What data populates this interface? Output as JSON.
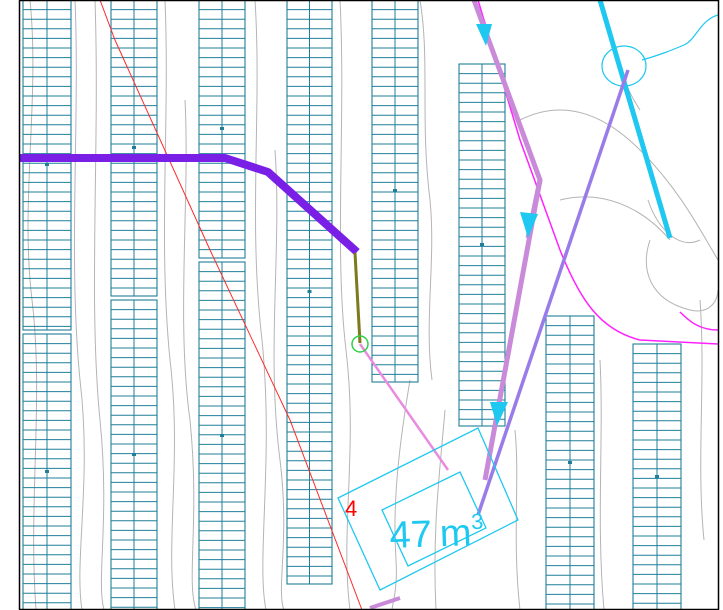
{
  "map": {
    "labels": {
      "point_id": "4",
      "volume_value": "47",
      "volume_unit": "m",
      "volume_exponent": "3"
    },
    "colors": {
      "background": "#ffffff",
      "border": "#000000",
      "panel_grid": "#1f7f99",
      "contour": "#b4b4b4",
      "boundary_red": "#ff2a2a",
      "boundary_magenta": "#ff22ff",
      "trunk_purple": "#7a1fe6",
      "olive_segment": "#7c7a1c",
      "pink_line": "#e88ce0",
      "flow_line_orchid": "#c98bd9",
      "flow_line_lavender": "#9a7ce8",
      "water_cyan": "#1ec8f0",
      "arrow_cyan": "#1ec8f0",
      "junction_green": "#2fd04a",
      "label_red": "#ff0000",
      "label_cyan": "#1ec8f0"
    }
  }
}
